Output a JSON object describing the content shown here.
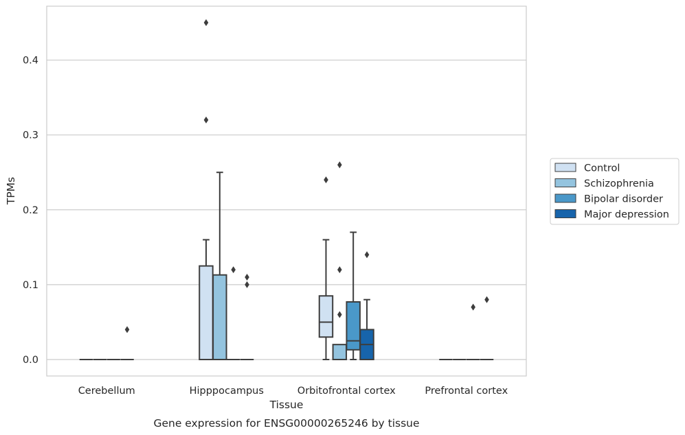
{
  "caption": "Gene expression for ENSG00000265246 by tissue",
  "chart_data": {
    "type": "box",
    "xlabel": "Tissue",
    "ylabel": "TPMs",
    "ylim": [
      -0.022,
      0.472
    ],
    "yticks": [
      0.0,
      0.1,
      0.2,
      0.3,
      0.4
    ],
    "ytick_labels": [
      "0.0",
      "0.1",
      "0.2",
      "0.3",
      "0.4"
    ],
    "grid": "horizontal",
    "legend_position": "right",
    "categories": [
      "Cerebellum",
      "Hipppocampus",
      "Orbitofrontal cortex",
      "Prefrontal cortex"
    ],
    "series": [
      {
        "name": "Control",
        "color": "#d0e1f2",
        "boxes": [
          {
            "category": "Cerebellum",
            "whislo": 0.0,
            "q1": 0.0,
            "med": 0.0,
            "q3": 0.0,
            "whishi": 0.0,
            "fliers": []
          },
          {
            "category": "Hipppocampus",
            "whislo": 0.0,
            "q1": 0.0,
            "med": 0.0,
            "q3": 0.125,
            "whishi": 0.16,
            "fliers": [
              0.32,
              0.45
            ]
          },
          {
            "category": "Orbitofrontal cortex",
            "whislo": 0.0,
            "q1": 0.03,
            "med": 0.05,
            "q3": 0.085,
            "whishi": 0.16,
            "fliers": [
              0.24
            ]
          },
          {
            "category": "Prefrontal cortex",
            "whislo": 0.0,
            "q1": 0.0,
            "med": 0.0,
            "q3": 0.0,
            "whishi": 0.0,
            "fliers": []
          }
        ]
      },
      {
        "name": "Schizophrenia",
        "color": "#94c4df",
        "boxes": [
          {
            "category": "Cerebellum",
            "whislo": 0.0,
            "q1": 0.0,
            "med": 0.0,
            "q3": 0.0,
            "whishi": 0.0,
            "fliers": []
          },
          {
            "category": "Hipppocampus",
            "whislo": 0.0,
            "q1": 0.0,
            "med": 0.0,
            "q3": 0.113,
            "whishi": 0.25,
            "fliers": []
          },
          {
            "category": "Orbitofrontal cortex",
            "whislo": 0.0,
            "q1": 0.0,
            "med": 0.0,
            "q3": 0.02,
            "whishi": 0.02,
            "fliers": [
              0.06,
              0.12,
              0.26
            ]
          },
          {
            "category": "Prefrontal cortex",
            "whislo": 0.0,
            "q1": 0.0,
            "med": 0.0,
            "q3": 0.0,
            "whishi": 0.0,
            "fliers": []
          }
        ]
      },
      {
        "name": "Bipolar disorder",
        "color": "#4a98c9",
        "boxes": [
          {
            "category": "Cerebellum",
            "whislo": 0.0,
            "q1": 0.0,
            "med": 0.0,
            "q3": 0.0,
            "whishi": 0.0,
            "fliers": []
          },
          {
            "category": "Hipppocampus",
            "whislo": 0.0,
            "q1": 0.0,
            "med": 0.0,
            "q3": 0.0,
            "whishi": 0.0,
            "fliers": [
              0.12
            ]
          },
          {
            "category": "Orbitofrontal cortex",
            "whislo": 0.0,
            "q1": 0.013,
            "med": 0.025,
            "q3": 0.077,
            "whishi": 0.17,
            "fliers": []
          },
          {
            "category": "Prefrontal cortex",
            "whislo": 0.0,
            "q1": 0.0,
            "med": 0.0,
            "q3": 0.0,
            "whishi": 0.0,
            "fliers": [
              0.07
            ]
          }
        ]
      },
      {
        "name": "Major depression",
        "color": "#1764ab",
        "boxes": [
          {
            "category": "Cerebellum",
            "whislo": 0.0,
            "q1": 0.0,
            "med": 0.0,
            "q3": 0.0,
            "whishi": 0.0,
            "fliers": [
              0.04
            ]
          },
          {
            "category": "Hipppocampus",
            "whislo": 0.0,
            "q1": 0.0,
            "med": 0.0,
            "q3": 0.0,
            "whishi": 0.0,
            "fliers": [
              0.1,
              0.11
            ]
          },
          {
            "category": "Orbitofrontal cortex",
            "whislo": 0.0,
            "q1": 0.0,
            "med": 0.02,
            "q3": 0.04,
            "whishi": 0.08,
            "fliers": [
              0.14
            ]
          },
          {
            "category": "Prefrontal cortex",
            "whislo": 0.0,
            "q1": 0.0,
            "med": 0.0,
            "q3": 0.0,
            "whishi": 0.0,
            "fliers": [
              0.08
            ]
          }
        ]
      }
    ]
  }
}
